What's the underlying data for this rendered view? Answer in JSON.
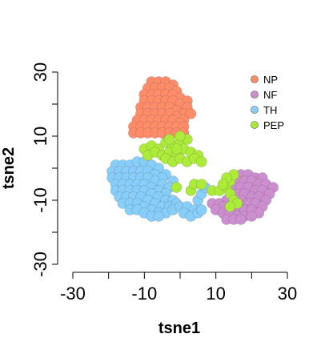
{
  "chart_data": {
    "type": "scatter",
    "xlabel": "tsne1",
    "ylabel": "tsne2",
    "xlim": [
      -30,
      30
    ],
    "ylim": [
      -30,
      30
    ],
    "x_ticks": [
      -30,
      -20,
      -10,
      0,
      10,
      20,
      30
    ],
    "x_tick_labels": [
      "-30",
      "",
      "-10",
      "",
      "10",
      "",
      "30"
    ],
    "y_ticks": [
      -30,
      -20,
      -10,
      0,
      10,
      20,
      30
    ],
    "y_tick_labels": [
      "-30",
      "",
      "-10",
      "",
      "10",
      "",
      "30"
    ],
    "grid": false,
    "legend_position": "top-right",
    "series": [
      {
        "name": "NP",
        "color": "#FF8C69",
        "points": [
          [
            -8,
            27
          ],
          [
            -6,
            27
          ],
          [
            -4,
            27
          ],
          [
            -2,
            26
          ],
          [
            -9,
            25
          ],
          [
            -7,
            25
          ],
          [
            -5,
            25
          ],
          [
            -3,
            25
          ],
          [
            -1,
            24
          ],
          [
            -10,
            23
          ],
          [
            -8,
            23
          ],
          [
            -6,
            23
          ],
          [
            -4,
            23
          ],
          [
            -2,
            23
          ],
          [
            0,
            22
          ],
          [
            2,
            21
          ],
          [
            -10,
            21
          ],
          [
            -8,
            21
          ],
          [
            -6,
            21
          ],
          [
            -4,
            21
          ],
          [
            -2,
            21
          ],
          [
            0,
            20
          ],
          [
            2,
            19
          ],
          [
            -11,
            19
          ],
          [
            -9,
            19
          ],
          [
            -7,
            19
          ],
          [
            -5,
            19
          ],
          [
            -3,
            19
          ],
          [
            -1,
            18
          ],
          [
            1,
            17
          ],
          [
            3,
            17
          ],
          [
            -11,
            17
          ],
          [
            -9,
            17
          ],
          [
            -7,
            17
          ],
          [
            -5,
            17
          ],
          [
            -3,
            17
          ],
          [
            -1,
            16
          ],
          [
            1,
            15
          ],
          [
            -12,
            15
          ],
          [
            -10,
            15
          ],
          [
            -8,
            15
          ],
          [
            -6,
            15
          ],
          [
            -4,
            15
          ],
          [
            -2,
            15
          ],
          [
            0,
            14
          ],
          [
            -13,
            13
          ],
          [
            -11,
            13
          ],
          [
            -9,
            13
          ],
          [
            -7,
            13
          ],
          [
            -5,
            13
          ],
          [
            -3,
            13
          ],
          [
            -1,
            13
          ],
          [
            1,
            13
          ],
          [
            -13,
            11
          ],
          [
            -11,
            11
          ],
          [
            -9,
            11
          ],
          [
            -7,
            11
          ],
          [
            -5,
            11
          ],
          [
            -3,
            11
          ],
          [
            -1,
            11
          ],
          [
            1,
            11
          ]
        ]
      },
      {
        "name": "NF",
        "color": "#CC8ECF",
        "points": [
          [
            17,
            -2
          ],
          [
            19,
            -2
          ],
          [
            21,
            -3
          ],
          [
            23,
            -3
          ],
          [
            16,
            -4
          ],
          [
            18,
            -4
          ],
          [
            20,
            -4
          ],
          [
            22,
            -5
          ],
          [
            24,
            -5
          ],
          [
            26,
            -6
          ],
          [
            15,
            -6
          ],
          [
            17,
            -6
          ],
          [
            19,
            -6
          ],
          [
            21,
            -7
          ],
          [
            23,
            -7
          ],
          [
            25,
            -8
          ],
          [
            14,
            -8
          ],
          [
            16,
            -8
          ],
          [
            18,
            -8
          ],
          [
            20,
            -9
          ],
          [
            22,
            -9
          ],
          [
            24,
            -10
          ],
          [
            13,
            -10
          ],
          [
            15,
            -10
          ],
          [
            17,
            -10
          ],
          [
            19,
            -11
          ],
          [
            21,
            -11
          ],
          [
            23,
            -12
          ],
          [
            9,
            -11
          ],
          [
            11,
            -11
          ],
          [
            12,
            -12
          ],
          [
            14,
            -12
          ],
          [
            16,
            -12
          ],
          [
            18,
            -13
          ],
          [
            20,
            -13
          ],
          [
            22,
            -14
          ],
          [
            10,
            -13
          ],
          [
            12,
            -14
          ],
          [
            14,
            -14
          ],
          [
            16,
            -15
          ],
          [
            18,
            -15
          ],
          [
            20,
            -15
          ],
          [
            13,
            -16
          ],
          [
            15,
            -16
          ],
          [
            17,
            -16
          ]
        ]
      },
      {
        "name": "TH",
        "color": "#87CEFA",
        "points": [
          [
            -18,
            1
          ],
          [
            -16,
            1
          ],
          [
            -14,
            1
          ],
          [
            -12,
            2
          ],
          [
            -10,
            2
          ],
          [
            -8,
            1
          ],
          [
            -6,
            0
          ],
          [
            -4,
            -2
          ],
          [
            -2,
            -4
          ],
          [
            -19,
            -1
          ],
          [
            -17,
            -1
          ],
          [
            -15,
            -1
          ],
          [
            -13,
            -1
          ],
          [
            -11,
            -1
          ],
          [
            -9,
            -1
          ],
          [
            -7,
            -2
          ],
          [
            -5,
            -3
          ],
          [
            -19,
            -3
          ],
          [
            -17,
            -3
          ],
          [
            -15,
            -3
          ],
          [
            -13,
            -3
          ],
          [
            -11,
            -3
          ],
          [
            -9,
            -3
          ],
          [
            -7,
            -4
          ],
          [
            -5,
            -5
          ],
          [
            -3,
            -6
          ],
          [
            -18,
            -5
          ],
          [
            -16,
            -5
          ],
          [
            -14,
            -5
          ],
          [
            -12,
            -5
          ],
          [
            -10,
            -5
          ],
          [
            -8,
            -6
          ],
          [
            -6,
            -7
          ],
          [
            -4,
            -8
          ],
          [
            -18,
            -7
          ],
          [
            -16,
            -7
          ],
          [
            -14,
            -7
          ],
          [
            -12,
            -7
          ],
          [
            -10,
            -7
          ],
          [
            -8,
            -8
          ],
          [
            -6,
            -9
          ],
          [
            -4,
            -10
          ],
          [
            -2,
            -10
          ],
          [
            -17,
            -9
          ],
          [
            -15,
            -9
          ],
          [
            -13,
            -9
          ],
          [
            -11,
            -9
          ],
          [
            -9,
            -10
          ],
          [
            -7,
            -11
          ],
          [
            -5,
            -12
          ],
          [
            -3,
            -12
          ],
          [
            -1,
            -11
          ],
          [
            -16,
            -11
          ],
          [
            -14,
            -11
          ],
          [
            -12,
            -11
          ],
          [
            -10,
            -12
          ],
          [
            -8,
            -13
          ],
          [
            -6,
            -14
          ],
          [
            -4,
            -14
          ],
          [
            -2,
            -13
          ],
          [
            0,
            -12
          ],
          [
            2,
            -12
          ],
          [
            4,
            -13
          ],
          [
            -14,
            -13
          ],
          [
            -12,
            -13
          ],
          [
            -10,
            -14
          ],
          [
            -8,
            -15
          ],
          [
            -6,
            -15
          ],
          [
            1,
            -14
          ],
          [
            3,
            -15
          ],
          [
            5,
            -14
          ],
          [
            6,
            -13
          ],
          [
            5,
            -10
          ],
          [
            6,
            -8
          ],
          [
            7,
            -6
          ]
        ]
      },
      {
        "name": "PEP",
        "color": "#ADEB3A",
        "points": [
          [
            -10,
            6
          ],
          [
            -8,
            7
          ],
          [
            -6,
            6
          ],
          [
            -4,
            8
          ],
          [
            -2,
            7
          ],
          [
            0,
            8
          ],
          [
            2,
            9
          ],
          [
            -9,
            4
          ],
          [
            -7,
            5
          ],
          [
            -5,
            4
          ],
          [
            -3,
            5
          ],
          [
            -1,
            4
          ],
          [
            1,
            6
          ],
          [
            3,
            5
          ],
          [
            5,
            4
          ],
          [
            -4,
            3
          ],
          [
            -2,
            2
          ],
          [
            0,
            3
          ],
          [
            2,
            2
          ],
          [
            4,
            3
          ],
          [
            6,
            2
          ],
          [
            -1,
            6
          ],
          [
            0,
            10
          ],
          [
            -3,
            9
          ],
          [
            -1,
            -6
          ],
          [
            3,
            -7
          ],
          [
            4,
            -5
          ],
          [
            6,
            -5
          ],
          [
            9,
            -7
          ],
          [
            11,
            -7
          ],
          [
            13,
            -6
          ],
          [
            14,
            -4
          ],
          [
            15,
            -2
          ],
          [
            13,
            -3
          ],
          [
            12,
            -5
          ],
          [
            14,
            -8
          ],
          [
            15,
            -10
          ],
          [
            16,
            -11
          ],
          [
            14,
            -12
          ]
        ]
      }
    ]
  }
}
